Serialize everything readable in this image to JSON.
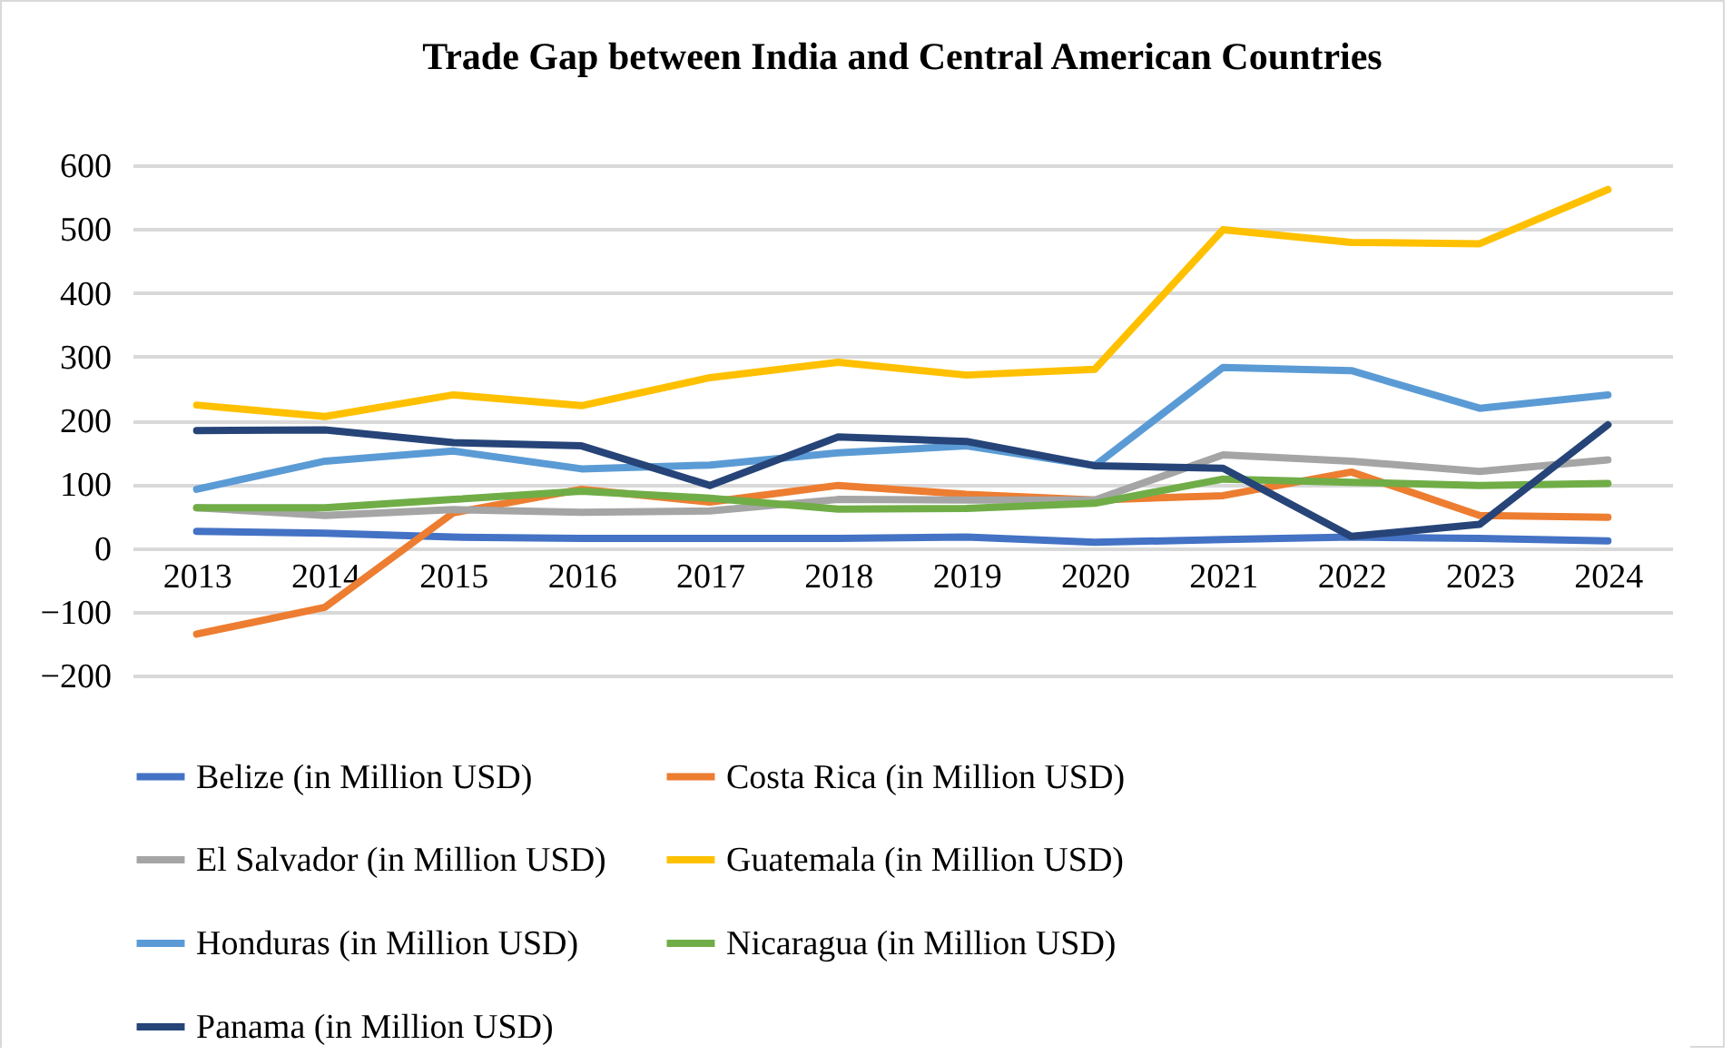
{
  "chart_data": {
    "type": "line",
    "title": "Trade Gap between India and Central American Countries",
    "categories": [
      "2013",
      "2014",
      "2015",
      "2016",
      "2017",
      "2018",
      "2019",
      "2020",
      "2021",
      "2022",
      "2023",
      "2024"
    ],
    "series": [
      {
        "name": "Belize (in Million USD)",
        "color": "#4472c4",
        "values": [
          26,
          23,
          17,
          15,
          15,
          15,
          17,
          9,
          13,
          17,
          15,
          11
        ]
      },
      {
        "name": "Costa Rica (in Million USD)",
        "color": "#ed7d31",
        "values": [
          -135,
          -93,
          55,
          92,
          72,
          98,
          84,
          75,
          82,
          119,
          51,
          48
        ]
      },
      {
        "name": "El Salvador (in Million USD)",
        "color": "#a5a5a5",
        "values": [
          63,
          51,
          60,
          56,
          58,
          76,
          75,
          75,
          146,
          136,
          120,
          138
        ]
      },
      {
        "name": "Guatemala (in Million USD)",
        "color": "#ffc000",
        "values": [
          224,
          206,
          240,
          223,
          267,
          291,
          271,
          280,
          499,
          479,
          477,
          562
        ]
      },
      {
        "name": "Honduras (in Million USD)",
        "color": "#5b9bd5",
        "values": [
          92,
          136,
          152,
          124,
          130,
          149,
          160,
          129,
          283,
          278,
          219,
          240
        ]
      },
      {
        "name": "Nicaragua (in Million USD)",
        "color": "#70ad47",
        "values": [
          63,
          63,
          76,
          89,
          78,
          61,
          62,
          70,
          108,
          103,
          98,
          101
        ]
      },
      {
        "name": "Panama (in Million USD)",
        "color": "#264478",
        "values": [
          184,
          185,
          165,
          160,
          98,
          174,
          167,
          129,
          125,
          18,
          37,
          193
        ]
      }
    ],
    "ylim": [
      -200,
      600
    ],
    "yticks": [
      -200,
      -100,
      0,
      100,
      200,
      300,
      400,
      500,
      600
    ],
    "grid": true,
    "legend": "bottom",
    "marker": "none",
    "line_style": "solid"
  }
}
